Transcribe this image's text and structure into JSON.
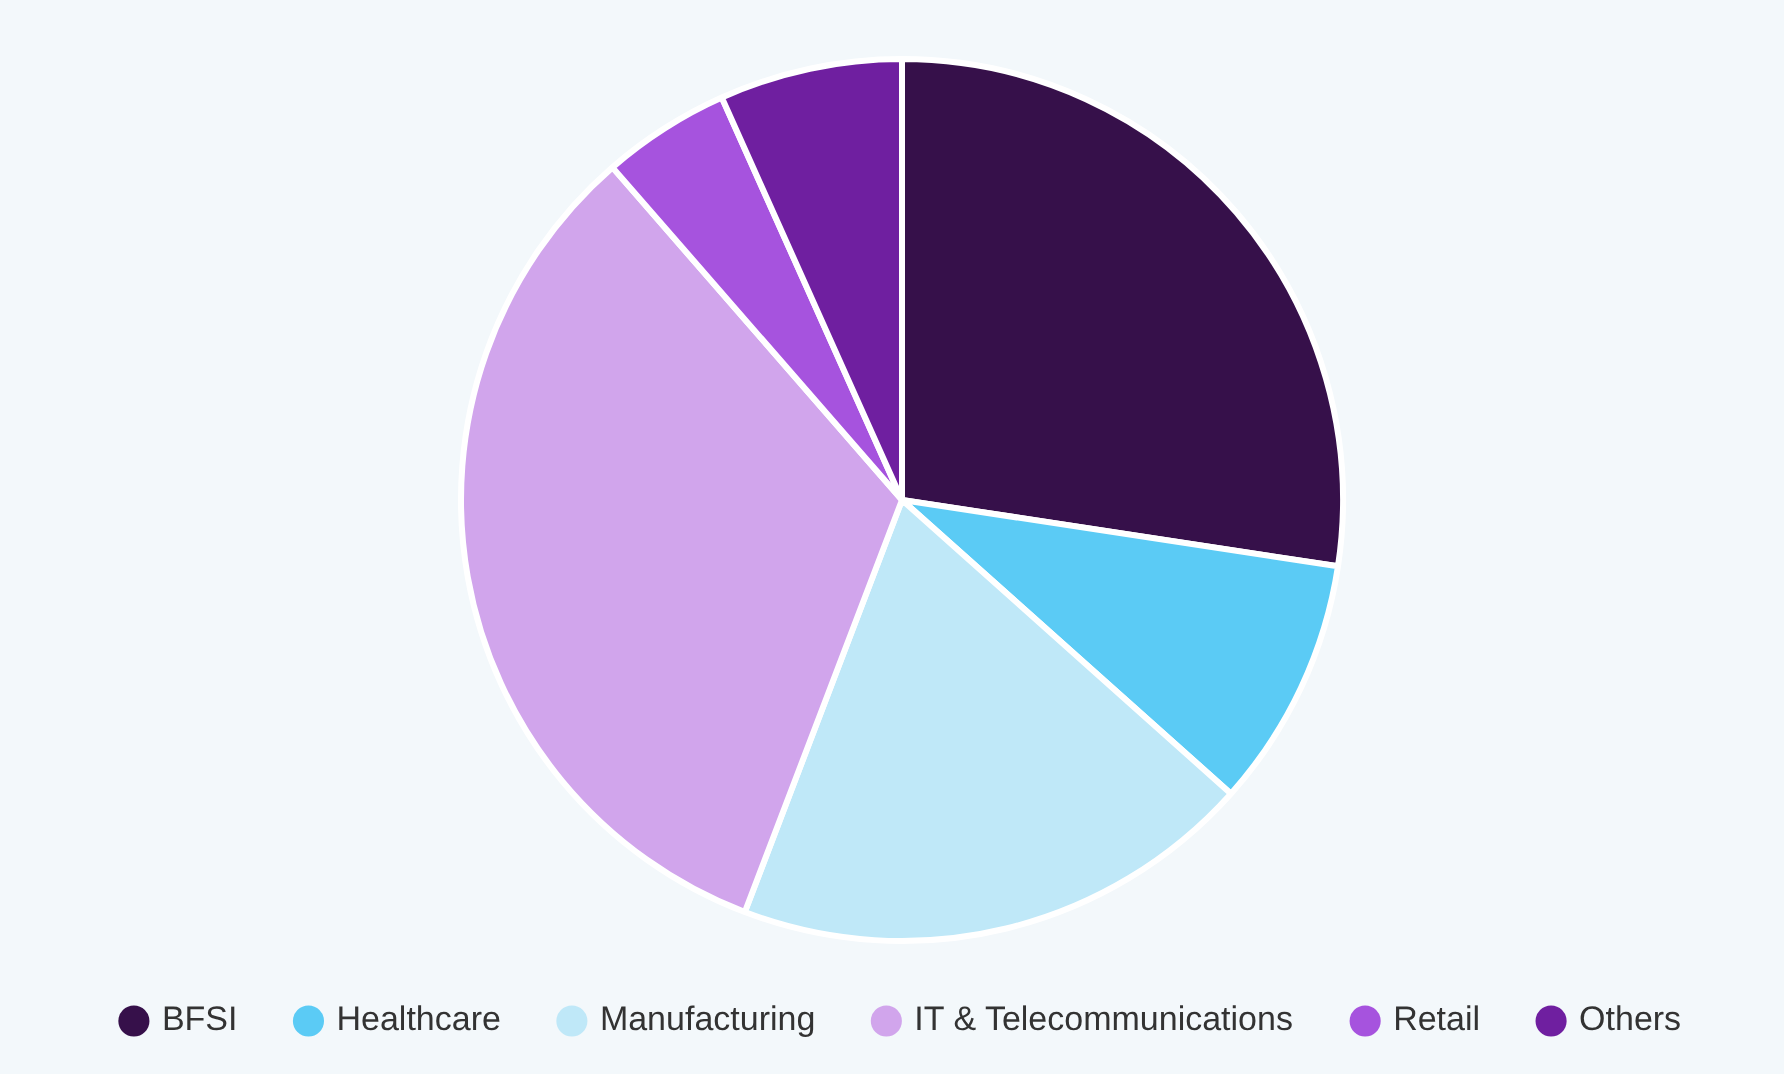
{
  "chart_data": {
    "type": "pie",
    "categories": [
      "BFSI",
      "Healthcare",
      "Manufacturing",
      "IT & Telecommunications",
      "Retail",
      "Others"
    ],
    "values": [
      27.4,
      9.2,
      19.2,
      32.8,
      4.7,
      6.7
    ],
    "colors": [
      "#36104a",
      "#5bcbf5",
      "#bfe8f8",
      "#d1a5ec",
      "#a653de",
      "#6f1fa0"
    ],
    "legend": "bottom"
  }
}
